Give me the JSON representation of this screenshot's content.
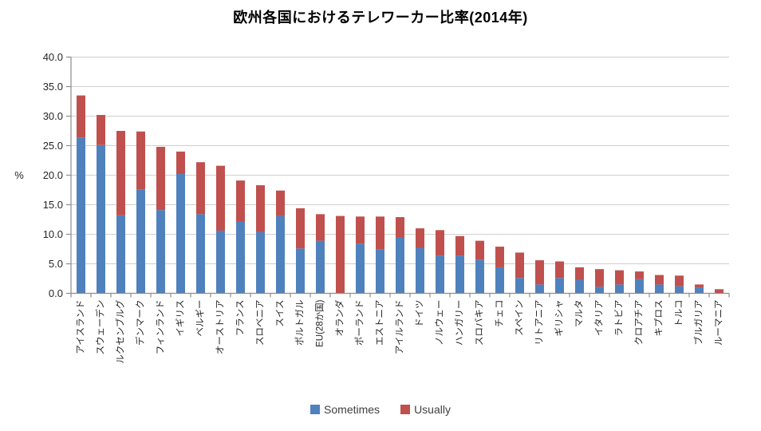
{
  "title": "欧州各国におけるテレワーカー比率(2014年)",
  "legend": {
    "sometimes_label": "Sometimes",
    "usually_label": "Usually"
  },
  "colors": {
    "sometimes": "#4F81BD",
    "usually": "#C0504D",
    "gridline": "#CFCFCF",
    "axis": "#8C8C8C",
    "tick_text": "#262626"
  },
  "chart_data": {
    "type": "bar",
    "stacked": true,
    "title": "欧州各国におけるテレワーカー比率(2014年)",
    "xlabel": "",
    "ylabel": "%",
    "ylim": [
      0,
      40
    ],
    "ytick_step": 5,
    "grid": true,
    "legend_position": "bottom",
    "categories": [
      "アイスランド",
      "スウェーデン",
      "ルクセンブルグ",
      "デンマーク",
      "フィンランド",
      "イギリス",
      "ベルギー",
      "オーストリア",
      "フランス",
      "スロベニア",
      "スイス",
      "ポルトガル",
      "EU(28か国)",
      "オランダ",
      "ポーランド",
      "エストニア",
      "アイルランド",
      "ドイツ",
      "ノルウェー",
      "ハンガリー",
      "スロバキア",
      "チェコ",
      "スペイン",
      "リトアニア",
      "ギリシャ",
      "マルタ",
      "イタリア",
      "ラトビア",
      "クロアチア",
      "キプロス",
      "トルコ",
      "ブルガリア",
      "ルーマニア"
    ],
    "series": [
      {
        "name": "Sometimes",
        "color": "#4F81BD",
        "values": [
          26.4,
          25.1,
          13.2,
          17.6,
          14.1,
          20.2,
          13.4,
          10.6,
          12.1,
          10.4,
          13.1,
          7.6,
          8.9,
          0.0,
          8.4,
          7.4,
          9.4,
          7.7,
          6.4,
          6.4,
          5.7,
          4.4,
          2.6,
          1.5,
          2.6,
          2.3,
          1.1,
          1.5,
          2.4,
          1.5,
          1.2,
          1.0,
          0.0
        ]
      },
      {
        "name": "Usually",
        "color": "#C0504D",
        "values": [
          7.1,
          5.1,
          14.3,
          9.8,
          10.7,
          3.8,
          8.8,
          11.0,
          7.0,
          7.9,
          4.3,
          6.8,
          4.5,
          13.1,
          4.6,
          5.6,
          3.5,
          3.3,
          4.3,
          3.3,
          3.2,
          3.5,
          4.3,
          4.1,
          2.8,
          2.1,
          3.0,
          2.4,
          1.3,
          1.6,
          1.8,
          0.5,
          0.7
        ]
      }
    ]
  }
}
